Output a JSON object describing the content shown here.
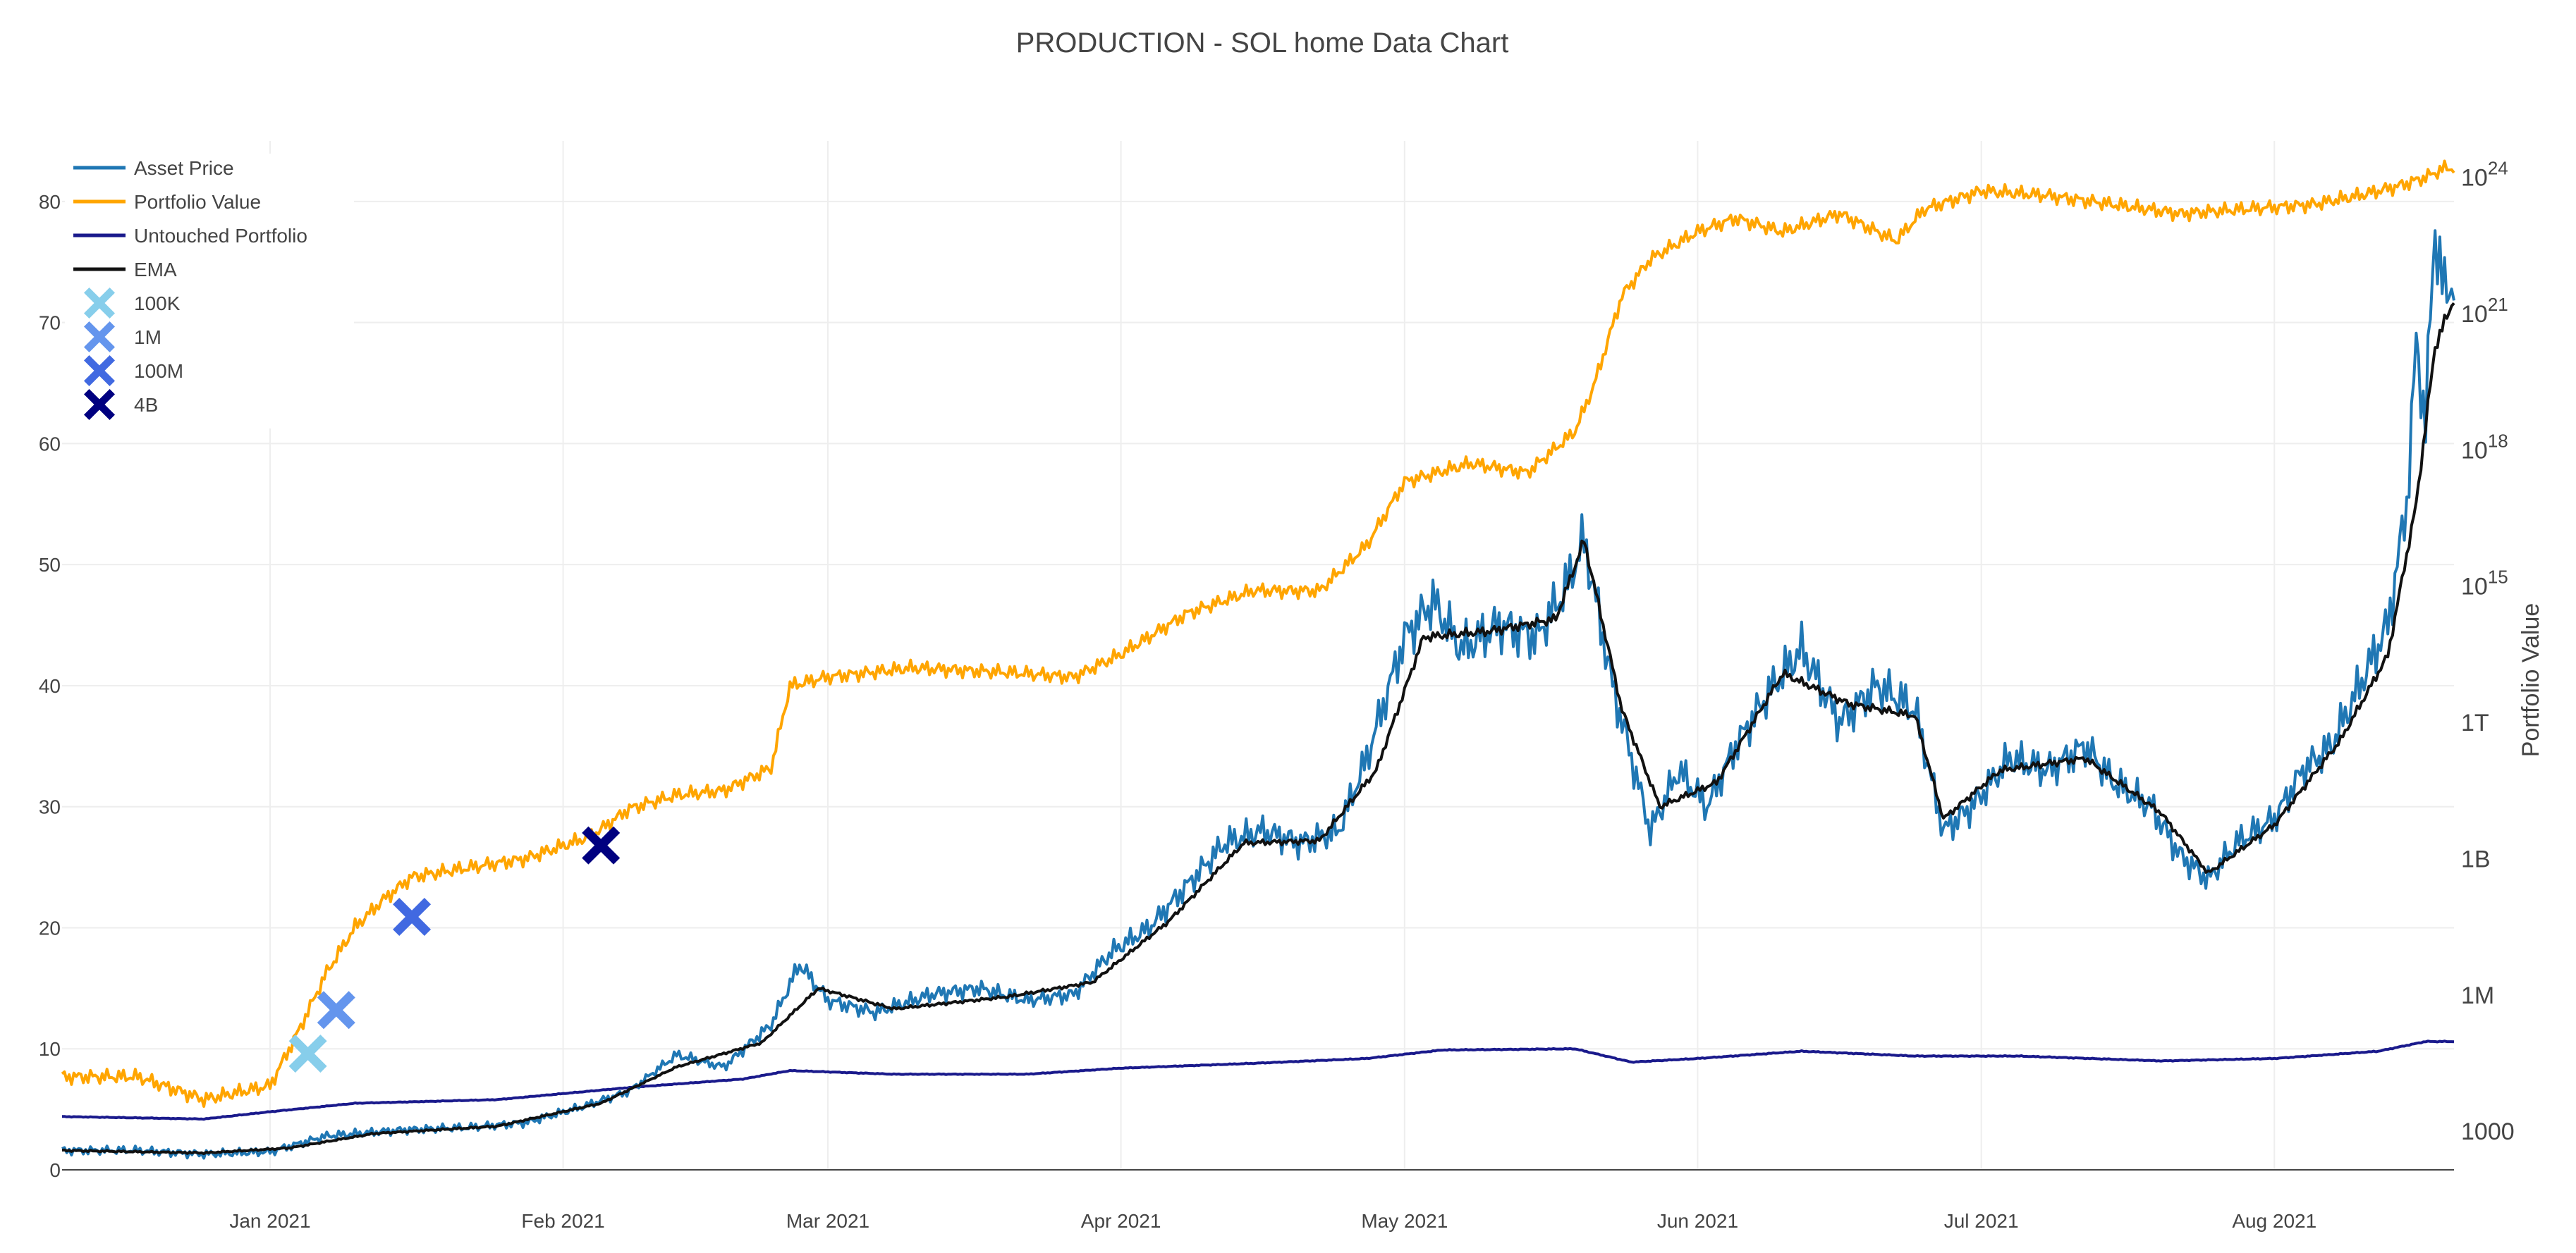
{
  "chart_data": {
    "type": "line",
    "title": "PRODUCTION - SOL home Data Chart",
    "x_range": [
      "2020-12-10",
      "2021-08-20"
    ],
    "x_ticks": [
      {
        "date": "2021-01-01",
        "label": "Jan 2021"
      },
      {
        "date": "2021-02-01",
        "label": "Feb 2021"
      },
      {
        "date": "2021-03-01",
        "label": "Mar 2021"
      },
      {
        "date": "2021-04-01",
        "label": "Apr 2021"
      },
      {
        "date": "2021-05-01",
        "label": "May 2021"
      },
      {
        "date": "2021-06-01",
        "label": "Jun 2021"
      },
      {
        "date": "2021-07-01",
        "label": "Jul 2021"
      },
      {
        "date": "2021-08-01",
        "label": "Aug 2021"
      }
    ],
    "y_left": {
      "range": [
        0,
        85
      ],
      "ticks": [
        0,
        10,
        20,
        30,
        40,
        50,
        60,
        70,
        80
      ],
      "label": ""
    },
    "y_right": {
      "label": "Portfolio Value",
      "scale": "log",
      "range_exp": [
        2.15,
        24.8
      ],
      "ticks": [
        {
          "exp": 3,
          "label": "1000"
        },
        {
          "exp": 6,
          "label": "1M"
        },
        {
          "exp": 9,
          "label": "1B"
        },
        {
          "exp": 12,
          "label": "1T"
        },
        {
          "exp": 15,
          "label": "10",
          "sup": "15"
        },
        {
          "exp": 18,
          "label": "10",
          "sup": "18"
        },
        {
          "exp": 21,
          "label": "10",
          "sup": "21"
        },
        {
          "exp": 24,
          "label": "10",
          "sup": "24"
        }
      ]
    },
    "grid": true,
    "legend_position": "top-left",
    "series": [
      {
        "name": "Asset Price",
        "axis": "left",
        "color": "#1f77b4",
        "points": [
          [
            "2020-12-10",
            1.6
          ],
          [
            "2020-12-18",
            1.6
          ],
          [
            "2020-12-25",
            1.3
          ],
          [
            "2021-01-01",
            1.5
          ],
          [
            "2021-01-07",
            2.8
          ],
          [
            "2021-01-15",
            3.3
          ],
          [
            "2021-01-22",
            3.5
          ],
          [
            "2021-01-28",
            3.9
          ],
          [
            "2021-02-03",
            5.2
          ],
          [
            "2021-02-08",
            6.5
          ],
          [
            "2021-02-13",
            9.5
          ],
          [
            "2021-02-18",
            8.5
          ],
          [
            "2021-02-23",
            12.0
          ],
          [
            "2021-02-26",
            17.0
          ],
          [
            "2021-03-01",
            14.0
          ],
          [
            "2021-03-06",
            13.0
          ],
          [
            "2021-03-12",
            14.5
          ],
          [
            "2021-03-17",
            15.0
          ],
          [
            "2021-03-22",
            14.0
          ],
          [
            "2021-03-27",
            14.5
          ],
          [
            "2021-03-31",
            18.0
          ],
          [
            "2021-04-04",
            20.0
          ],
          [
            "2021-04-08",
            23.5
          ],
          [
            "2021-04-12",
            27.0
          ],
          [
            "2021-04-16",
            28.0
          ],
          [
            "2021-04-20",
            27.0
          ],
          [
            "2021-04-24",
            28.0
          ],
          [
            "2021-04-27",
            34.0
          ],
          [
            "2021-05-01",
            44.0
          ],
          [
            "2021-05-04",
            47.0
          ],
          [
            "2021-05-07",
            43.0
          ],
          [
            "2021-05-11",
            45.0
          ],
          [
            "2021-05-15",
            44.0
          ],
          [
            "2021-05-18",
            48.0
          ],
          [
            "2021-05-20",
            52.0
          ],
          [
            "2021-05-23",
            40.0
          ],
          [
            "2021-05-27",
            28.0
          ],
          [
            "2021-05-30",
            33.0
          ],
          [
            "2021-06-02",
            30.0
          ],
          [
            "2021-06-05",
            35.0
          ],
          [
            "2021-06-09",
            40.0
          ],
          [
            "2021-06-12",
            43.0
          ],
          [
            "2021-06-16",
            37.0
          ],
          [
            "2021-06-20",
            40.0
          ],
          [
            "2021-06-24",
            38.0
          ],
          [
            "2021-06-27",
            28.0
          ],
          [
            "2021-06-30",
            30.0
          ],
          [
            "2021-07-04",
            34.0
          ],
          [
            "2021-07-08",
            33.0
          ],
          [
            "2021-07-12",
            35.0
          ],
          [
            "2021-07-15",
            32.0
          ],
          [
            "2021-07-19",
            30.0
          ],
          [
            "2021-07-22",
            26.0
          ],
          [
            "2021-07-25",
            24.0
          ],
          [
            "2021-07-28",
            27.0
          ],
          [
            "2021-08-01",
            29.0
          ],
          [
            "2021-08-04",
            33.0
          ],
          [
            "2021-08-07",
            35.0
          ],
          [
            "2021-08-10",
            40.0
          ],
          [
            "2021-08-13",
            45.0
          ],
          [
            "2021-08-15",
            55.0
          ],
          [
            "2021-08-16",
            68.0
          ],
          [
            "2021-08-17",
            62.0
          ],
          [
            "2021-08-18",
            78.0
          ],
          [
            "2021-08-19",
            72.0
          ],
          [
            "2021-08-20",
            74.0
          ]
        ]
      },
      {
        "name": "Portfolio Value",
        "axis": "right",
        "color": "#ffa500",
        "points": [
          [
            "2020-12-10",
            4.2
          ],
          [
            "2020-12-18",
            4.2
          ],
          [
            "2020-12-25",
            3.7
          ],
          [
            "2021-01-01",
            4.0
          ],
          [
            "2021-01-04",
            5.2
          ],
          [
            "2021-01-07",
            6.5
          ],
          [
            "2021-01-10",
            7.5
          ],
          [
            "2021-01-13",
            8.1
          ],
          [
            "2021-01-16",
            8.6
          ],
          [
            "2021-01-22",
            8.8
          ],
          [
            "2021-01-28",
            9.0
          ],
          [
            "2021-02-04",
            9.5
          ],
          [
            "2021-02-08",
            10.1
          ],
          [
            "2021-02-13",
            10.4
          ],
          [
            "2021-02-18",
            10.5
          ],
          [
            "2021-02-23",
            11.0
          ],
          [
            "2021-02-25",
            12.8
          ],
          [
            "2021-03-01",
            13.0
          ],
          [
            "2021-03-10",
            13.2
          ],
          [
            "2021-03-20",
            13.1
          ],
          [
            "2021-03-27",
            13.0
          ],
          [
            "2021-04-01",
            13.5
          ],
          [
            "2021-04-08",
            14.4
          ],
          [
            "2021-04-15",
            14.9
          ],
          [
            "2021-04-22",
            14.9
          ],
          [
            "2021-04-27",
            15.9
          ],
          [
            "2021-05-01",
            17.3
          ],
          [
            "2021-05-08",
            17.7
          ],
          [
            "2021-05-14",
            17.5
          ],
          [
            "2021-05-19",
            18.4
          ],
          [
            "2021-05-21",
            19.4
          ],
          [
            "2021-05-24",
            21.4
          ],
          [
            "2021-05-27",
            22.2
          ],
          [
            "2021-06-01",
            22.8
          ],
          [
            "2021-06-05",
            23.1
          ],
          [
            "2021-06-10",
            22.8
          ],
          [
            "2021-06-16",
            23.2
          ],
          [
            "2021-06-22",
            22.6
          ],
          [
            "2021-06-25",
            23.3
          ],
          [
            "2021-07-01",
            23.7
          ],
          [
            "2021-07-08",
            23.6
          ],
          [
            "2021-07-15",
            23.4
          ],
          [
            "2021-07-22",
            23.2
          ],
          [
            "2021-07-29",
            23.3
          ],
          [
            "2021-08-05",
            23.4
          ],
          [
            "2021-08-10",
            23.6
          ],
          [
            "2021-08-14",
            23.8
          ],
          [
            "2021-08-17",
            24.0
          ],
          [
            "2021-08-19",
            24.2
          ],
          [
            "2021-08-20",
            24.2
          ]
        ]
      },
      {
        "name": "Untouched Portfolio",
        "axis": "left",
        "color": "#1a1a8c",
        "points": [
          [
            "2020-12-10",
            4.4
          ],
          [
            "2020-12-25",
            4.2
          ],
          [
            "2021-01-01",
            4.8
          ],
          [
            "2021-01-10",
            5.5
          ],
          [
            "2021-01-25",
            5.8
          ],
          [
            "2021-02-08",
            6.8
          ],
          [
            "2021-02-20",
            7.5
          ],
          [
            "2021-02-25",
            8.2
          ],
          [
            "2021-03-08",
            7.9
          ],
          [
            "2021-03-22",
            7.9
          ],
          [
            "2021-04-01",
            8.4
          ],
          [
            "2021-04-15",
            8.8
          ],
          [
            "2021-04-27",
            9.2
          ],
          [
            "2021-05-05",
            9.9
          ],
          [
            "2021-05-19",
            10.0
          ],
          [
            "2021-05-25",
            8.9
          ],
          [
            "2021-06-01",
            9.2
          ],
          [
            "2021-06-12",
            9.8
          ],
          [
            "2021-06-24",
            9.4
          ],
          [
            "2021-07-05",
            9.4
          ],
          [
            "2021-07-20",
            9.0
          ],
          [
            "2021-08-01",
            9.2
          ],
          [
            "2021-08-12",
            9.8
          ],
          [
            "2021-08-17",
            10.6
          ],
          [
            "2021-08-20",
            10.6
          ]
        ]
      },
      {
        "name": "EMA",
        "axis": "left",
        "color": "#111111",
        "points": [
          [
            "2020-12-10",
            1.6
          ],
          [
            "2020-12-25",
            1.4
          ],
          [
            "2021-01-03",
            1.8
          ],
          [
            "2021-01-12",
            3.0
          ],
          [
            "2021-01-25",
            3.6
          ],
          [
            "2021-02-05",
            5.5
          ],
          [
            "2021-02-13",
            8.5
          ],
          [
            "2021-02-22",
            10.5
          ],
          [
            "2021-02-28",
            15.0
          ],
          [
            "2021-03-08",
            13.3
          ],
          [
            "2021-03-20",
            14.3
          ],
          [
            "2021-03-29",
            15.5
          ],
          [
            "2021-04-06",
            20.5
          ],
          [
            "2021-04-14",
            27.0
          ],
          [
            "2021-04-22",
            27.2
          ],
          [
            "2021-04-28",
            33.0
          ],
          [
            "2021-05-03",
            44.0
          ],
          [
            "2021-05-10",
            44.5
          ],
          [
            "2021-05-17",
            45.5
          ],
          [
            "2021-05-20",
            52.0
          ],
          [
            "2021-05-24",
            38.0
          ],
          [
            "2021-05-28",
            30.0
          ],
          [
            "2021-06-03",
            32.0
          ],
          [
            "2021-06-10",
            41.0
          ],
          [
            "2021-06-17",
            38.5
          ],
          [
            "2021-06-24",
            37.5
          ],
          [
            "2021-06-27",
            29.0
          ],
          [
            "2021-07-03",
            33.0
          ],
          [
            "2021-07-12",
            34.0
          ],
          [
            "2021-07-20",
            29.5
          ],
          [
            "2021-07-25",
            24.5
          ],
          [
            "2021-08-01",
            28.5
          ],
          [
            "2021-08-08",
            35.5
          ],
          [
            "2021-08-13",
            42.5
          ],
          [
            "2021-08-16",
            55.0
          ],
          [
            "2021-08-18",
            68.0
          ],
          [
            "2021-08-20",
            72.0
          ]
        ]
      }
    ],
    "markers": [
      {
        "name": "100K",
        "date": "2021-01-05",
        "y": 9.6,
        "color": "#87ceeb"
      },
      {
        "name": "1M",
        "date": "2021-01-08",
        "y": 13.2,
        "color": "#6495ed"
      },
      {
        "name": "100M",
        "date": "2021-01-16",
        "y": 20.9,
        "color": "#4169e1"
      },
      {
        "name": "4B",
        "date": "2021-02-05",
        "y": 26.8,
        "color": "#000080"
      }
    ]
  }
}
